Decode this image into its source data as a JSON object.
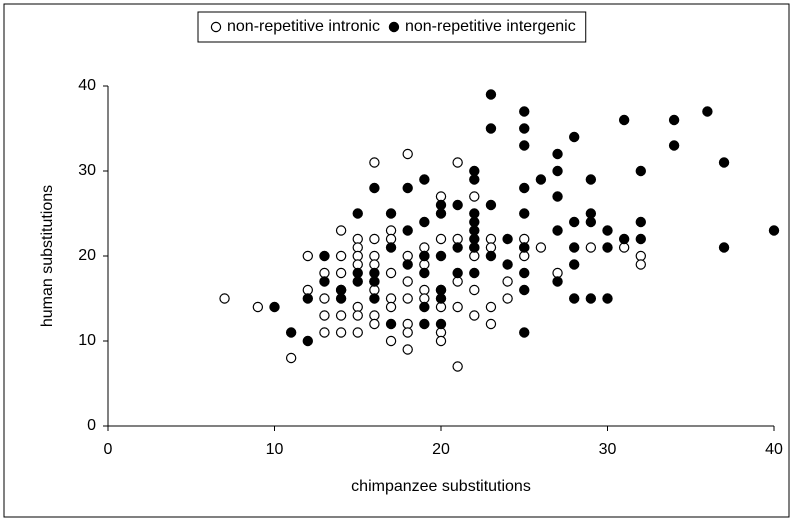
{
  "chart_data": {
    "type": "scatter",
    "xlabel": "chimpanzee substitutions",
    "ylabel": "human substitutions",
    "xlim": [
      0,
      40
    ],
    "xticks": [
      0,
      10,
      20,
      30,
      40
    ],
    "ylim": [
      0,
      40
    ],
    "yticks": [
      0,
      10,
      20,
      30,
      40
    ],
    "grid": false,
    "legend": "top",
    "series": [
      {
        "name": "non-repetitive intronic",
        "color": "#000000",
        "fill": "#ffffff",
        "x": [
          7,
          9,
          11,
          12,
          12,
          13,
          13,
          13,
          13,
          14,
          14,
          14,
          14,
          14,
          14,
          15,
          15,
          15,
          15,
          15,
          15,
          15,
          16,
          16,
          16,
          16,
          16,
          16,
          16,
          16,
          17,
          17,
          17,
          17,
          17,
          17,
          18,
          18,
          18,
          18,
          18,
          18,
          18,
          19,
          19,
          19,
          19,
          19,
          20,
          20,
          20,
          20,
          20,
          20,
          21,
          21,
          21,
          21,
          21,
          22,
          22,
          22,
          22,
          22,
          23,
          23,
          23,
          23,
          24,
          24,
          25,
          25,
          25,
          26,
          27,
          29,
          31,
          32,
          32
        ],
        "values": [
          15,
          14,
          8,
          16,
          20,
          18,
          15,
          13,
          11,
          23,
          20,
          18,
          16,
          13,
          11,
          22,
          21,
          20,
          19,
          14,
          13,
          11,
          31,
          22,
          20,
          19,
          17,
          16,
          13,
          12,
          23,
          22,
          18,
          15,
          14,
          10,
          32,
          20,
          17,
          15,
          12,
          11,
          9,
          21,
          20,
          19,
          16,
          15,
          27,
          22,
          16,
          14,
          11,
          10,
          31,
          22,
          17,
          14,
          7,
          27,
          21,
          20,
          16,
          13,
          22,
          21,
          14,
          12,
          17,
          15,
          22,
          21,
          20,
          21,
          18,
          21,
          21,
          20,
          19
        ]
      },
      {
        "name": "non-repetitive intergenic",
        "color": "#000000",
        "fill": "#000000",
        "x": [
          10,
          11,
          12,
          12,
          13,
          13,
          14,
          14,
          15,
          15,
          15,
          16,
          16,
          16,
          16,
          17,
          17,
          17,
          18,
          18,
          18,
          19,
          19,
          19,
          19,
          19,
          19,
          20,
          20,
          20,
          20,
          20,
          20,
          21,
          21,
          21,
          22,
          22,
          22,
          22,
          22,
          22,
          22,
          22,
          23,
          23,
          23,
          23,
          24,
          24,
          25,
          25,
          25,
          25,
          25,
          25,
          25,
          25,
          25,
          26,
          27,
          27,
          27,
          27,
          27,
          28,
          28,
          28,
          28,
          28,
          29,
          29,
          29,
          29,
          30,
          30,
          30,
          31,
          31,
          32,
          32,
          32,
          34,
          34,
          36,
          37,
          37,
          40
        ],
        "values": [
          14,
          11,
          15,
          10,
          20,
          17,
          16,
          15,
          25,
          18,
          17,
          28,
          18,
          17,
          15,
          25,
          21,
          12,
          28,
          23,
          19,
          29,
          24,
          20,
          18,
          14,
          12,
          26,
          25,
          20,
          16,
          15,
          12,
          26,
          21,
          18,
          30,
          29,
          25,
          24,
          23,
          22,
          21,
          18,
          39,
          35,
          26,
          20,
          22,
          19,
          37,
          35,
          33,
          28,
          25,
          21,
          18,
          16,
          11,
          29,
          32,
          30,
          27,
          23,
          17,
          34,
          24,
          21,
          19,
          15,
          29,
          25,
          24,
          15,
          23,
          21,
          15,
          36,
          22,
          30,
          24,
          22,
          36,
          33,
          37,
          31,
          21,
          23
        ]
      }
    ]
  }
}
